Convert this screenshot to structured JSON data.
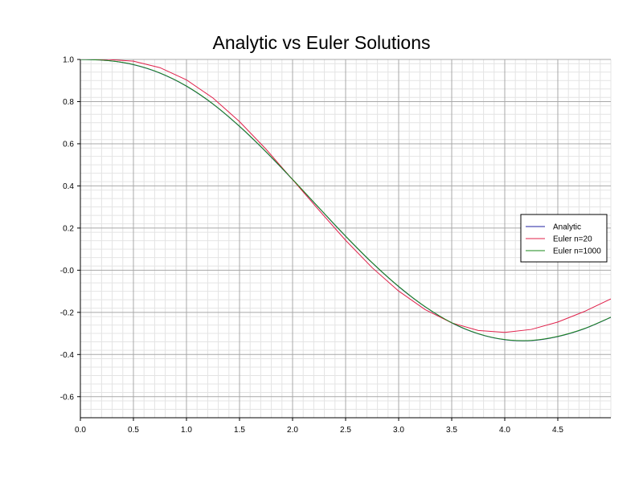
{
  "chart_data": {
    "type": "line",
    "title": "Analytic vs Euler Solutions",
    "xlabel": "",
    "ylabel": "",
    "xlim": [
      0,
      5
    ],
    "ylim": [
      -0.7,
      1.0
    ],
    "x_ticks": [
      0.0,
      0.5,
      1.0,
      1.5,
      2.0,
      2.5,
      3.0,
      3.5,
      4.0,
      4.5
    ],
    "x_tick_labels": [
      "0.0",
      "0.5",
      "1.0",
      "1.5",
      "2.0",
      "2.5",
      "3.0",
      "3.5",
      "4.0",
      "4.5"
    ],
    "y_ticks": [
      1.0,
      0.8,
      0.6,
      0.4,
      0.2,
      0.0,
      -0.2,
      -0.4,
      -0.6
    ],
    "y_tick_labels": [
      "1.0",
      "0.8",
      "0.6",
      "0.4",
      "0.2",
      "-0.0",
      "-0.2",
      "-0.4",
      "-0.6"
    ],
    "grid": true,
    "minor_grid": true,
    "legend_position": "right",
    "series": [
      {
        "name": "Analytic",
        "color": "#1f1fa0",
        "x": [
          0.0,
          0.25,
          0.5,
          0.75,
          1.0,
          1.25,
          1.5,
          1.75,
          2.0,
          2.25,
          2.5,
          2.75,
          3.0,
          3.25,
          3.5,
          3.75,
          4.0,
          4.25,
          4.5,
          4.75,
          5.0
        ],
        "values": [
          1.0,
          0.995,
          0.975,
          0.935,
          0.873,
          0.788,
          0.682,
          0.561,
          0.43,
          0.295,
          0.161,
          0.035,
          -0.078,
          -0.174,
          -0.25,
          -0.302,
          -0.33,
          -0.334,
          -0.315,
          -0.278,
          -0.224
        ]
      },
      {
        "name": "Euler n=20",
        "color": "#e0204a",
        "x": [
          0.0,
          0.25,
          0.5,
          0.75,
          1.0,
          1.25,
          1.5,
          1.75,
          2.0,
          2.25,
          2.5,
          2.75,
          3.0,
          3.25,
          3.5,
          3.75,
          4.0,
          4.25,
          4.5,
          4.75,
          5.0
        ],
        "values": [
          1.0,
          1.0,
          0.992,
          0.961,
          0.903,
          0.817,
          0.705,
          0.574,
          0.43,
          0.284,
          0.142,
          0.012,
          -0.099,
          -0.187,
          -0.25,
          -0.286,
          -0.295,
          -0.281,
          -0.246,
          -0.196,
          -0.136
        ]
      },
      {
        "name": "Euler n=1000",
        "color": "#1a8a1a",
        "x": [
          0.0,
          0.25,
          0.5,
          0.75,
          1.0,
          1.25,
          1.5,
          1.75,
          2.0,
          2.25,
          2.5,
          2.75,
          3.0,
          3.25,
          3.5,
          3.75,
          4.0,
          4.25,
          4.5,
          4.75,
          5.0
        ],
        "values": [
          1.0,
          0.995,
          0.976,
          0.936,
          0.874,
          0.789,
          0.683,
          0.562,
          0.431,
          0.296,
          0.162,
          0.036,
          -0.077,
          -0.173,
          -0.249,
          -0.301,
          -0.329,
          -0.333,
          -0.314,
          -0.277,
          -0.223
        ]
      }
    ]
  }
}
